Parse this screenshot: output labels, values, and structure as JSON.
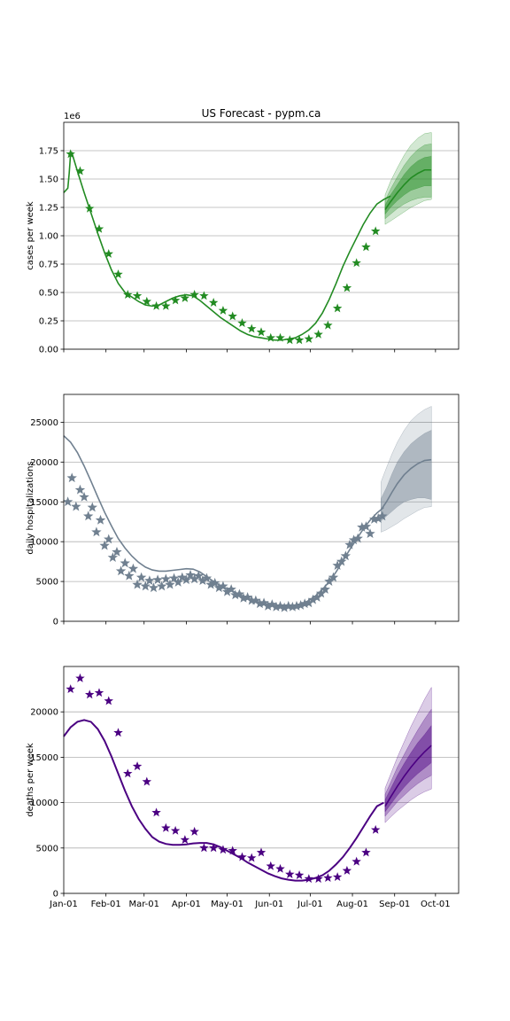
{
  "title": "US Forecast   -  pypm.ca",
  "colors": {
    "cases": "#228b22",
    "hospitalizations": "#708090",
    "deaths": "#4b0082",
    "grid": "#b0b0b0"
  },
  "x_axis": {
    "ticks": [
      0,
      31,
      59,
      90,
      120,
      151,
      181,
      212,
      243,
      273
    ],
    "tick_labels": [
      "Jan-01",
      "Feb-01",
      "Mar-01",
      "Apr-01",
      "May-01",
      "Jun-01",
      "Jul-01",
      "Aug-01",
      "Sep-01",
      "Oct-01"
    ],
    "range": [
      0,
      290
    ]
  },
  "chart_data": [
    {
      "type": "line",
      "title": "US Forecast   -  pypm.ca",
      "ylabel": "cases per week",
      "offset_label": "1e6",
      "xlim": [
        0,
        290
      ],
      "ylim": [
        0,
        2.0
      ],
      "grid": true,
      "yticks": [
        0,
        0.25,
        0.5,
        0.75,
        1.0,
        1.25,
        1.5,
        1.75
      ],
      "ytick_labels": [
        "0.00",
        "0.25",
        "0.50",
        "0.75",
        "1.00",
        "1.25",
        "1.50",
        "1.75"
      ],
      "model": {
        "x": [
          0,
          3,
          4,
          5,
          6,
          10,
          15,
          20,
          25,
          30,
          35,
          40,
          45,
          50,
          55,
          60,
          65,
          70,
          75,
          80,
          85,
          90,
          95,
          100,
          105,
          110,
          115,
          120,
          125,
          130,
          135,
          140,
          145,
          150,
          155,
          160,
          165,
          170,
          175,
          180,
          185,
          190,
          195,
          200,
          205,
          210,
          215,
          220,
          225,
          230,
          235,
          240
        ],
        "y": [
          1.38,
          1.42,
          1.55,
          1.72,
          1.73,
          1.57,
          1.38,
          1.2,
          1.02,
          0.85,
          0.7,
          0.58,
          0.5,
          0.46,
          0.42,
          0.39,
          0.38,
          0.39,
          0.42,
          0.45,
          0.47,
          0.48,
          0.47,
          0.43,
          0.38,
          0.33,
          0.28,
          0.24,
          0.2,
          0.16,
          0.13,
          0.11,
          0.1,
          0.09,
          0.08,
          0.08,
          0.09,
          0.1,
          0.13,
          0.17,
          0.23,
          0.32,
          0.44,
          0.58,
          0.73,
          0.86,
          0.98,
          1.1,
          1.2,
          1.28,
          1.32,
          1.35
        ]
      },
      "observed": {
        "x": [
          5,
          12,
          19,
          26,
          33,
          40,
          47,
          54,
          61,
          68,
          75,
          82,
          89,
          96,
          103,
          110,
          117,
          124,
          131,
          138,
          145,
          152,
          159,
          166,
          173,
          180,
          187,
          194,
          201,
          208,
          215,
          222,
          229
        ],
        "y": [
          1.72,
          1.57,
          1.24,
          1.06,
          0.84,
          0.66,
          0.48,
          0.47,
          0.42,
          0.38,
          0.38,
          0.43,
          0.45,
          0.48,
          0.47,
          0.41,
          0.34,
          0.29,
          0.23,
          0.18,
          0.15,
          0.1,
          0.1,
          0.08,
          0.08,
          0.09,
          0.13,
          0.21,
          0.36,
          0.54,
          0.76,
          0.9,
          1.04
        ]
      },
      "forecast": {
        "x": [
          236,
          240,
          245,
          250,
          255,
          260,
          265,
          270
        ],
        "median": [
          1.23,
          1.3,
          1.38,
          1.45,
          1.51,
          1.55,
          1.58,
          1.58
        ],
        "band_inner": [
          [
            1.19,
            1.27
          ],
          [
            1.25,
            1.36
          ],
          [
            1.31,
            1.45
          ],
          [
            1.36,
            1.54
          ],
          [
            1.4,
            1.61
          ],
          [
            1.42,
            1.66
          ],
          [
            1.44,
            1.69
          ],
          [
            1.44,
            1.7
          ]
        ],
        "band_mid": [
          [
            1.15,
            1.31
          ],
          [
            1.19,
            1.41
          ],
          [
            1.24,
            1.52
          ],
          [
            1.28,
            1.62
          ],
          [
            1.31,
            1.7
          ],
          [
            1.33,
            1.76
          ],
          [
            1.34,
            1.8
          ],
          [
            1.34,
            1.81
          ]
        ],
        "band_outer": [
          [
            1.1,
            1.36
          ],
          [
            1.13,
            1.48
          ],
          [
            1.17,
            1.6
          ],
          [
            1.21,
            1.71
          ],
          [
            1.25,
            1.8
          ],
          [
            1.28,
            1.86
          ],
          [
            1.31,
            1.9
          ],
          [
            1.32,
            1.91
          ]
        ]
      }
    },
    {
      "type": "line",
      "ylabel": "daily hospitalizations",
      "xlim": [
        0,
        290
      ],
      "ylim": [
        0,
        28500
      ],
      "grid": true,
      "yticks": [
        0,
        5000,
        10000,
        15000,
        20000,
        25000
      ],
      "ytick_labels": [
        "0",
        "5000",
        "10000",
        "15000",
        "20000",
        "25000"
      ],
      "model": {
        "x": [
          0,
          5,
          10,
          15,
          20,
          25,
          30,
          35,
          40,
          45,
          50,
          55,
          60,
          65,
          70,
          75,
          80,
          85,
          90,
          95,
          100,
          105,
          110,
          115,
          120,
          125,
          130,
          135,
          140,
          145,
          150,
          155,
          160,
          165,
          170,
          175,
          180,
          185,
          190,
          195,
          200,
          205,
          210,
          215,
          220,
          225,
          230,
          235
        ],
        "y": [
          23300,
          22500,
          21200,
          19500,
          17600,
          15600,
          13700,
          12000,
          10400,
          9200,
          8200,
          7400,
          6800,
          6450,
          6300,
          6300,
          6400,
          6500,
          6600,
          6550,
          6200,
          5600,
          5000,
          4500,
          4100,
          3700,
          3300,
          2900,
          2600,
          2300,
          2100,
          1950,
          1900,
          1900,
          2000,
          2200,
          2600,
          3200,
          4000,
          5000,
          6200,
          7600,
          9000,
          10300,
          11600,
          12700,
          13600,
          14300
        ]
      },
      "observed": {
        "x": [
          3,
          6,
          9,
          12,
          15,
          18,
          21,
          24,
          27,
          30,
          33,
          36,
          39,
          42,
          45,
          48,
          51,
          54,
          57,
          60,
          63,
          66,
          69,
          72,
          75,
          78,
          81,
          84,
          87,
          90,
          93,
          96,
          99,
          102,
          105,
          108,
          111,
          114,
          117,
          120,
          123,
          126,
          129,
          132,
          135,
          138,
          141,
          144,
          147,
          150,
          153,
          156,
          159,
          162,
          165,
          168,
          171,
          174,
          177,
          180,
          183,
          186,
          189,
          192,
          195,
          198,
          201,
          204,
          207,
          210,
          213,
          216,
          219,
          222,
          225,
          228,
          231,
          234
        ],
        "y": [
          15000,
          18000,
          14400,
          16500,
          15600,
          13200,
          14300,
          11200,
          12700,
          9500,
          10300,
          8000,
          8700,
          6300,
          7300,
          5700,
          6600,
          4600,
          5500,
          4400,
          5100,
          4200,
          5200,
          4400,
          5300,
          4600,
          5400,
          4900,
          5500,
          5200,
          5800,
          5300,
          5700,
          5100,
          5400,
          4600,
          4800,
          4200,
          4400,
          3700,
          4000,
          3300,
          3400,
          2900,
          3000,
          2600,
          2600,
          2200,
          2300,
          1900,
          2100,
          1800,
          1900,
          1700,
          1900,
          1800,
          1900,
          2000,
          2200,
          2300,
          2700,
          3000,
          3500,
          4000,
          5000,
          5500,
          7000,
          7500,
          8200,
          9600,
          10200,
          10400,
          11800,
          11900,
          11000,
          12800,
          12900,
          13200
        ]
      },
      "forecast": {
        "x": [
          233,
          237,
          241,
          245,
          250,
          255,
          260,
          265,
          270
        ],
        "median": [
          14000,
          15000,
          16200,
          17300,
          18400,
          19200,
          19800,
          20200,
          20300
        ],
        "band_inner": [
          [
            12600,
            15400
          ],
          [
            13200,
            16800
          ],
          [
            13800,
            18500
          ],
          [
            14400,
            20000
          ],
          [
            15000,
            21300
          ],
          [
            15300,
            22300
          ],
          [
            15500,
            23000
          ],
          [
            15500,
            23600
          ],
          [
            15300,
            24000
          ]
        ],
        "band_outer": [
          [
            11200,
            17500
          ],
          [
            11500,
            19300
          ],
          [
            11900,
            21000
          ],
          [
            12300,
            22500
          ],
          [
            12900,
            24000
          ],
          [
            13400,
            25200
          ],
          [
            13900,
            26000
          ],
          [
            14300,
            26600
          ],
          [
            14400,
            27000
          ]
        ]
      }
    },
    {
      "type": "line",
      "ylabel": "deaths per week",
      "xlim": [
        0,
        290
      ],
      "ylim": [
        0,
        25000
      ],
      "grid": true,
      "yticks": [
        0,
        5000,
        10000,
        15000,
        20000
      ],
      "ytick_labels": [
        "0",
        "5000",
        "10000",
        "15000",
        "20000"
      ],
      "model": {
        "x": [
          0,
          5,
          10,
          15,
          20,
          25,
          30,
          35,
          40,
          45,
          50,
          55,
          60,
          65,
          70,
          75,
          80,
          85,
          90,
          95,
          100,
          105,
          110,
          115,
          120,
          125,
          130,
          135,
          140,
          145,
          150,
          155,
          160,
          165,
          170,
          175,
          180,
          185,
          190,
          195,
          200,
          205,
          210,
          215,
          220,
          225,
          230,
          235
        ],
        "y": [
          17300,
          18300,
          18900,
          19100,
          18900,
          18100,
          16800,
          15100,
          13200,
          11300,
          9600,
          8200,
          7100,
          6200,
          5700,
          5450,
          5350,
          5350,
          5400,
          5500,
          5550,
          5550,
          5400,
          5100,
          4700,
          4300,
          3900,
          3400,
          3000,
          2600,
          2200,
          1900,
          1650,
          1500,
          1400,
          1400,
          1500,
          1700,
          2000,
          2500,
          3200,
          4000,
          5000,
          6100,
          7300,
          8500,
          9600,
          10000
        ]
      },
      "observed": {
        "x": [
          5,
          12,
          19,
          26,
          33,
          40,
          47,
          54,
          61,
          68,
          75,
          82,
          89,
          96,
          103,
          110,
          117,
          124,
          131,
          138,
          145,
          152,
          159,
          166,
          173,
          180,
          187,
          194,
          201,
          208,
          215,
          222,
          229
        ],
        "y": [
          22500,
          23700,
          21900,
          22100,
          21200,
          17700,
          13200,
          14000,
          12300,
          8900,
          7200,
          6900,
          5900,
          6800,
          5000,
          5000,
          4800,
          4700,
          4000,
          3900,
          4500,
          3000,
          2700,
          2100,
          2000,
          1600,
          1600,
          1700,
          1800,
          2500,
          3500,
          4500,
          7000
        ]
      },
      "forecast": {
        "x": [
          236,
          240,
          245,
          250,
          255,
          260,
          265,
          270
        ],
        "median": [
          9600,
          10600,
          11800,
          12900,
          13900,
          14800,
          15600,
          16300
        ],
        "band_inner": [
          [
            9000,
            10300
          ],
          [
            9800,
            11500
          ],
          [
            10800,
            13000
          ],
          [
            11700,
            14300
          ],
          [
            12500,
            15500
          ],
          [
            13200,
            16600
          ],
          [
            13800,
            17500
          ],
          [
            14400,
            18500
          ]
        ],
        "band_mid": [
          [
            8500,
            10900
          ],
          [
            9200,
            12200
          ],
          [
            10100,
            13900
          ],
          [
            10800,
            15300
          ],
          [
            11500,
            16700
          ],
          [
            12100,
            18000
          ],
          [
            12600,
            19200
          ],
          [
            13000,
            20300
          ]
        ],
        "band_outer": [
          [
            7800,
            11600
          ],
          [
            8400,
            13100
          ],
          [
            9100,
            15000
          ],
          [
            9700,
            16700
          ],
          [
            10300,
            18400
          ],
          [
            10800,
            19900
          ],
          [
            11200,
            21400
          ],
          [
            11500,
            22700
          ]
        ]
      }
    }
  ]
}
